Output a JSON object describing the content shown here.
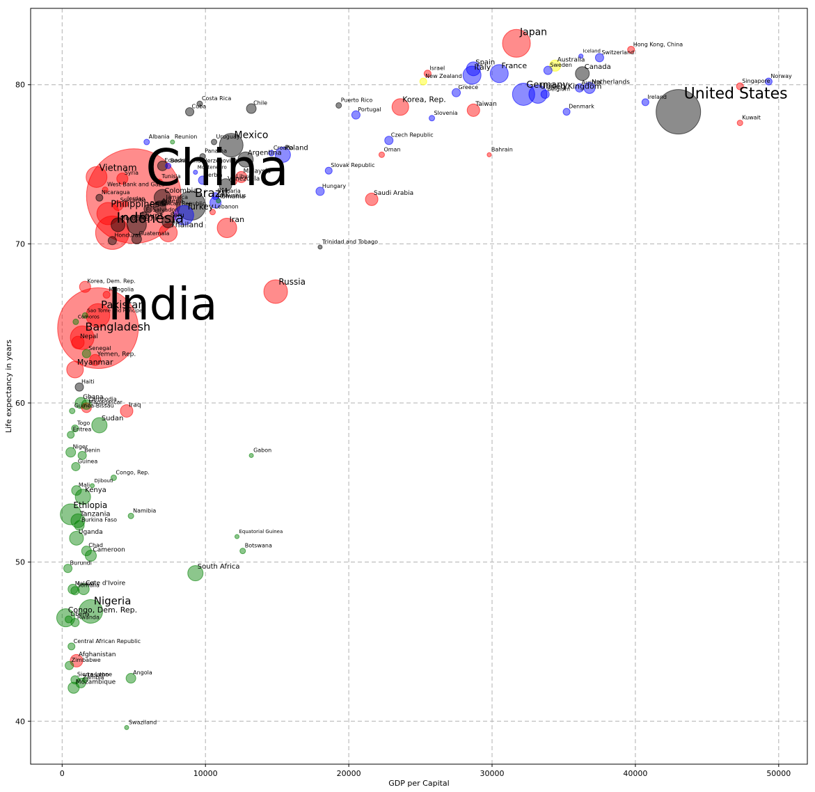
{
  "chart_data": {
    "type": "scatter",
    "title": "",
    "xlabel": "GDP per Capital",
    "ylabel": "Life expectancy in years",
    "xlim": [
      -2200,
      52000
    ],
    "ylim": [
      37.3,
      84.8
    ],
    "xticks": [
      0,
      10000,
      20000,
      30000,
      40000,
      50000
    ],
    "yticks": [
      40,
      50,
      60,
      70,
      80
    ],
    "grid": true,
    "grid_style": "dashed",
    "colors": {
      "red": "#ff0000",
      "blue": "#0000ff",
      "gray": "#000000",
      "green": "#008000",
      "yellow": "#ffff00"
    },
    "point_alpha": 0.45,
    "size_note": "bubble radius scales with label size (population)",
    "points": [
      {
        "name": "China",
        "x": 5000,
        "y": 73.0,
        "c": "red",
        "r": 68,
        "fs": 72
      },
      {
        "name": "India",
        "x": 2500,
        "y": 64.7,
        "c": "red",
        "r": 58,
        "fs": 64
      },
      {
        "name": "United States",
        "x": 43000,
        "y": 78.3,
        "c": "gray",
        "r": 32,
        "fs": 22
      },
      {
        "name": "Indonesia",
        "x": 3500,
        "y": 70.7,
        "c": "red",
        "r": 24,
        "fs": 20
      },
      {
        "name": "Brazil",
        "x": 9000,
        "y": 72.4,
        "c": "gray",
        "r": 21,
        "fs": 17
      },
      {
        "name": "Japan",
        "x": 31700,
        "y": 82.6,
        "c": "red",
        "r": 20,
        "fs": 14
      },
      {
        "name": "Bangladesh",
        "x": 1400,
        "y": 64.1,
        "c": "red",
        "r": 17,
        "fs": 16
      },
      {
        "name": "Pakistan",
        "x": 2500,
        "y": 65.5,
        "c": "red",
        "r": 17,
        "fs": 15
      },
      {
        "name": "Nigeria",
        "x": 2000,
        "y": 46.9,
        "c": "green",
        "r": 17,
        "fs": 15
      },
      {
        "name": "Mexico",
        "x": 11800,
        "y": 76.2,
        "c": "gray",
        "r": 17,
        "fs": 14
      },
      {
        "name": "Vietnam",
        "x": 2400,
        "y": 74.2,
        "c": "red",
        "r": 15,
        "fs": 13
      },
      {
        "name": "Philippines",
        "x": 3200,
        "y": 71.9,
        "c": "red",
        "r": 16,
        "fs": 13
      },
      {
        "name": "Germany",
        "x": 32200,
        "y": 79.4,
        "c": "blue",
        "r": 16,
        "fs": 13
      },
      {
        "name": "Russia",
        "x": 14900,
        "y": 67.0,
        "c": "red",
        "r": 17,
        "fs": 12
      },
      {
        "name": "Ethiopia",
        "x": 600,
        "y": 53.0,
        "c": "green",
        "r": 15,
        "fs": 12
      },
      {
        "name": "Egypt",
        "x": 5200,
        "y": 71.2,
        "c": "gray",
        "r": 14,
        "fs": 12
      },
      {
        "name": "Turkey",
        "x": 8500,
        "y": 71.8,
        "c": "blue",
        "r": 14,
        "fs": 12
      },
      {
        "name": "Iran",
        "x": 11500,
        "y": 71.0,
        "c": "red",
        "r": 14,
        "fs": 11
      },
      {
        "name": "Thailand",
        "x": 7400,
        "y": 70.7,
        "c": "red",
        "r": 13,
        "fs": 11
      },
      {
        "name": "France",
        "x": 30500,
        "y": 80.7,
        "c": "blue",
        "r": 13,
        "fs": 11
      },
      {
        "name": "United Kingdom",
        "x": 33200,
        "y": 79.4,
        "c": "blue",
        "r": 13,
        "fs": 11
      },
      {
        "name": "Italy",
        "x": 28600,
        "y": 80.6,
        "c": "blue",
        "r": 13,
        "fs": 11
      },
      {
        "name": "Congo, Dem. Rep.",
        "x": 250,
        "y": 46.5,
        "c": "green",
        "r": 13,
        "fs": 11
      },
      {
        "name": "Myanmar",
        "x": 900,
        "y": 62.1,
        "c": "red",
        "r": 12,
        "fs": 11
      },
      {
        "name": "Korea, Rep.",
        "x": 23600,
        "y": 78.6,
        "c": "red",
        "r": 12,
        "fs": 11
      },
      {
        "name": "Colombia",
        "x": 7000,
        "y": 72.9,
        "c": "gray",
        "r": 12,
        "fs": 10
      },
      {
        "name": "Spain",
        "x": 28700,
        "y": 81.0,
        "c": "blue",
        "r": 10,
        "fs": 10
      },
      {
        "name": "Argentina",
        "x": 12800,
        "y": 75.3,
        "c": "gray",
        "r": 11,
        "fs": 10
      },
      {
        "name": "Poland",
        "x": 15400,
        "y": 75.6,
        "c": "blue",
        "r": 11,
        "fs": 10
      },
      {
        "name": "Sudan",
        "x": 2600,
        "y": 58.6,
        "c": "green",
        "r": 11,
        "fs": 10
      },
      {
        "name": "Tanzania",
        "x": 1100,
        "y": 52.6,
        "c": "green",
        "r": 10,
        "fs": 10
      },
      {
        "name": "Kenya",
        "x": 1450,
        "y": 54.1,
        "c": "green",
        "r": 11,
        "fs": 10
      },
      {
        "name": "South Africa",
        "x": 9300,
        "y": 49.3,
        "c": "green",
        "r": 11,
        "fs": 10
      },
      {
        "name": "Canada",
        "x": 36300,
        "y": 80.7,
        "c": "gray",
        "r": 10,
        "fs": 10
      },
      {
        "name": "Morocco",
        "x": 3900,
        "y": 71.2,
        "c": "gray",
        "r": 10,
        "fs": 9
      },
      {
        "name": "Algeria",
        "x": 6800,
        "y": 72.3,
        "c": "gray",
        "r": 9,
        "fs": 9
      },
      {
        "name": "Iraq",
        "x": 4500,
        "y": 59.5,
        "c": "red",
        "r": 9,
        "fs": 9
      },
      {
        "name": "Saudi Arabia",
        "x": 21600,
        "y": 72.8,
        "c": "red",
        "r": 9,
        "fs": 9
      },
      {
        "name": "Malaysia",
        "x": 12500,
        "y": 74.2,
        "c": "red",
        "r": 8,
        "fs": 9
      },
      {
        "name": "Venezuela",
        "x": 11400,
        "y": 73.7,
        "c": "gray",
        "r": 9,
        "fs": 9
      },
      {
        "name": "Peru",
        "x": 7400,
        "y": 71.4,
        "c": "gray",
        "r": 9,
        "fs": 9
      },
      {
        "name": "Uganda",
        "x": 1000,
        "y": 51.5,
        "c": "green",
        "r": 10,
        "fs": 9
      },
      {
        "name": "Nepal",
        "x": 1100,
        "y": 63.8,
        "c": "red",
        "r": 9,
        "fs": 9
      },
      {
        "name": "Taiwan",
        "x": 28700,
        "y": 78.4,
        "c": "red",
        "r": 9,
        "fs": 9
      },
      {
        "name": "Australia",
        "x": 34400,
        "y": 81.2,
        "c": "yellow",
        "r": 8,
        "fs": 9
      },
      {
        "name": "Netherlands",
        "x": 36800,
        "y": 79.8,
        "c": "blue",
        "r": 8,
        "fs": 9
      },
      {
        "name": "Romania",
        "x": 10700,
        "y": 72.6,
        "c": "blue",
        "r": 8,
        "fs": 9
      },
      {
        "name": "Ghana",
        "x": 1300,
        "y": 60.0,
        "c": "green",
        "r": 8,
        "fs": 9
      },
      {
        "name": "Yemen, Rep.",
        "x": 2300,
        "y": 62.7,
        "c": "red",
        "r": 8,
        "fs": 9
      },
      {
        "name": "Mozambique",
        "x": 800,
        "y": 42.1,
        "c": "green",
        "r": 8,
        "fs": 9
      },
      {
        "name": "Cameroon",
        "x": 2000,
        "y": 50.4,
        "c": "green",
        "r": 8,
        "fs": 9
      },
      {
        "name": "Cote d'Ivoire",
        "x": 1500,
        "y": 48.3,
        "c": "green",
        "r": 8,
        "fs": 9
      },
      {
        "name": "Afghanistan",
        "x": 1000,
        "y": 43.8,
        "c": "red",
        "r": 9,
        "fs": 9
      },
      {
        "name": "Chile",
        "x": 13200,
        "y": 78.5,
        "c": "gray",
        "r": 7,
        "fs": 8
      },
      {
        "name": "Madagascar",
        "x": 1700,
        "y": 59.7,
        "c": "red",
        "r": 7,
        "fs": 8
      },
      {
        "name": "Cambodia",
        "x": 1700,
        "y": 59.9,
        "c": "green",
        "r": 7,
        "fs": 8
      },
      {
        "name": "Korea, Dem. Rep.",
        "x": 1600,
        "y": 67.3,
        "c": "red",
        "r": 8,
        "fs": 8
      },
      {
        "name": "Syria",
        "x": 4200,
        "y": 74.1,
        "c": "red",
        "r": 8,
        "fs": 8
      },
      {
        "name": "Sri Lanka",
        "x": 3900,
        "y": 72.4,
        "c": "red",
        "r": 7,
        "fs": 8
      },
      {
        "name": "Angola",
        "x": 4800,
        "y": 42.7,
        "c": "green",
        "r": 7,
        "fs": 8
      },
      {
        "name": "Zimbabwe",
        "x": 500,
        "y": 43.5,
        "c": "green",
        "r": 6,
        "fs": 8
      },
      {
        "name": "Burkina Faso",
        "x": 1200,
        "y": 52.3,
        "c": "green",
        "r": 7,
        "fs": 8
      },
      {
        "name": "Chad",
        "x": 1700,
        "y": 50.7,
        "c": "green",
        "r": 7,
        "fs": 8
      },
      {
        "name": "Mali",
        "x": 1000,
        "y": 54.5,
        "c": "green",
        "r": 7,
        "fs": 8
      },
      {
        "name": "Malawi",
        "x": 750,
        "y": 48.3,
        "c": "green",
        "r": 7,
        "fs": 8
      },
      {
        "name": "Niger",
        "x": 600,
        "y": 56.9,
        "c": "green",
        "r": 7,
        "fs": 8
      },
      {
        "name": "Zambia",
        "x": 1300,
        "y": 42.4,
        "c": "green",
        "r": 7,
        "fs": 8
      },
      {
        "name": "Senegal",
        "x": 1700,
        "y": 63.1,
        "c": "green",
        "r": 6,
        "fs": 8
      },
      {
        "name": "Guatemala",
        "x": 5200,
        "y": 70.3,
        "c": "gray",
        "r": 7,
        "fs": 8
      },
      {
        "name": "Cuba",
        "x": 8900,
        "y": 78.3,
        "c": "gray",
        "r": 6,
        "fs": 8
      },
      {
        "name": "Ecuador",
        "x": 7000,
        "y": 74.9,
        "c": "gray",
        "r": 7,
        "fs": 8
      },
      {
        "name": "Haiti",
        "x": 1200,
        "y": 61.0,
        "c": "gray",
        "r": 6,
        "fs": 8
      },
      {
        "name": "Greece",
        "x": 27500,
        "y": 79.5,
        "c": "blue",
        "r": 6,
        "fs": 8
      },
      {
        "name": "Belgium",
        "x": 33700,
        "y": 79.4,
        "c": "blue",
        "r": 6,
        "fs": 8
      },
      {
        "name": "Sweden",
        "x": 33900,
        "y": 80.9,
        "c": "blue",
        "r": 6,
        "fs": 8
      },
      {
        "name": "Austria",
        "x": 36100,
        "y": 79.8,
        "c": "blue",
        "r": 6,
        "fs": 8
      },
      {
        "name": "Switzerland",
        "x": 37500,
        "y": 81.7,
        "c": "blue",
        "r": 6,
        "fs": 8
      },
      {
        "name": "Hungary",
        "x": 18000,
        "y": 73.3,
        "c": "blue",
        "r": 6,
        "fs": 8
      },
      {
        "name": "Portugal",
        "x": 20500,
        "y": 78.1,
        "c": "blue",
        "r": 6,
        "fs": 8
      },
      {
        "name": "Czech Republic",
        "x": 22800,
        "y": 76.5,
        "c": "blue",
        "r": 6,
        "fs": 8
      },
      {
        "name": "Serbia",
        "x": 9800,
        "y": 74.0,
        "c": "blue",
        "r": 6,
        "fs": 8
      },
      {
        "name": "Bulgaria",
        "x": 10700,
        "y": 73.0,
        "c": "blue",
        "r": 5,
        "fs": 8
      },
      {
        "name": "Dominican Republic",
        "x": 6000,
        "y": 72.2,
        "c": "gray",
        "r": 6,
        "fs": 8
      },
      {
        "name": "El Salvador",
        "x": 5700,
        "y": 71.8,
        "c": "gray",
        "r": 5,
        "fs": 8
      },
      {
        "name": "Honduras",
        "x": 3500,
        "y": 70.2,
        "c": "gray",
        "r": 6,
        "fs": 8
      },
      {
        "name": "Nicaragua",
        "x": 2600,
        "y": 72.9,
        "c": "gray",
        "r": 5,
        "fs": 8
      },
      {
        "name": "Somalia",
        "x": 900,
        "y": 48.2,
        "c": "green",
        "r": 6,
        "fs": 8
      },
      {
        "name": "Rwanda",
        "x": 900,
        "y": 46.2,
        "c": "green",
        "r": 6,
        "fs": 8
      },
      {
        "name": "Burundi",
        "x": 400,
        "y": 49.6,
        "c": "green",
        "r": 6,
        "fs": 8
      },
      {
        "name": "Guinea",
        "x": 950,
        "y": 56.0,
        "c": "green",
        "r": 6,
        "fs": 8
      },
      {
        "name": "Benin",
        "x": 1400,
        "y": 56.7,
        "c": "green",
        "r": 6,
        "fs": 8
      },
      {
        "name": "Togo",
        "x": 900,
        "y": 58.4,
        "c": "green",
        "r": 5,
        "fs": 8
      },
      {
        "name": "Eritrea",
        "x": 600,
        "y": 58.0,
        "c": "green",
        "r": 5,
        "fs": 8
      },
      {
        "name": "Sierra Leone",
        "x": 900,
        "y": 42.6,
        "c": "green",
        "r": 6,
        "fs": 8
      },
      {
        "name": "Liberia",
        "x": 450,
        "y": 46.4,
        "c": "green",
        "r": 5,
        "fs": 8
      },
      {
        "name": "Central African Republic",
        "x": 650,
        "y": 44.7,
        "c": "green",
        "r": 5,
        "fs": 8
      },
      {
        "name": "Lesotho",
        "x": 1600,
        "y": 42.6,
        "c": "green",
        "r": 4,
        "fs": 8
      },
      {
        "name": "Guinea-Bissau",
        "x": 700,
        "y": 59.5,
        "c": "green",
        "r": 4,
        "fs": 8
      },
      {
        "name": "Mongolia",
        "x": 3100,
        "y": 66.8,
        "c": "red",
        "r": 5,
        "fs": 8
      },
      {
        "name": "Sao Tome and Principe",
        "x": 1600,
        "y": 65.5,
        "c": "green",
        "r": 4,
        "fs": 7
      },
      {
        "name": "Comoros",
        "x": 950,
        "y": 65.1,
        "c": "green",
        "r": 4,
        "fs": 7
      },
      {
        "name": "Iceland",
        "x": 36200,
        "y": 81.8,
        "c": "blue",
        "r": 3,
        "fs": 7
      },
      {
        "name": "Hong Kong, China",
        "x": 39700,
        "y": 82.2,
        "c": "red",
        "r": 5,
        "fs": 8
      },
      {
        "name": "Israel",
        "x": 25500,
        "y": 80.7,
        "c": "red",
        "r": 5,
        "fs": 8
      },
      {
        "name": "New Zealand",
        "x": 25200,
        "y": 80.2,
        "c": "yellow",
        "r": 5,
        "fs": 8
      },
      {
        "name": "Singapore",
        "x": 47300,
        "y": 79.9,
        "c": "red",
        "r": 5,
        "fs": 8
      },
      {
        "name": "Norway",
        "x": 49300,
        "y": 80.2,
        "c": "blue",
        "r": 5,
        "fs": 8
      },
      {
        "name": "Ireland",
        "x": 40700,
        "y": 78.9,
        "c": "blue",
        "r": 5,
        "fs": 8
      },
      {
        "name": "Denmark",
        "x": 35200,
        "y": 78.3,
        "c": "blue",
        "r": 5,
        "fs": 8
      },
      {
        "name": "Kuwait",
        "x": 47300,
        "y": 77.6,
        "c": "red",
        "r": 4,
        "fs": 8
      },
      {
        "name": "Bahrain",
        "x": 29800,
        "y": 75.6,
        "c": "red",
        "r": 3,
        "fs": 8
      },
      {
        "name": "Oman",
        "x": 22300,
        "y": 75.6,
        "c": "red",
        "r": 4,
        "fs": 8
      },
      {
        "name": "Slovenia",
        "x": 25800,
        "y": 77.9,
        "c": "blue",
        "r": 4,
        "fs": 8
      },
      {
        "name": "Puerto Rico",
        "x": 19300,
        "y": 78.7,
        "c": "gray",
        "r": 4,
        "fs": 8
      },
      {
        "name": "Croatia",
        "x": 14600,
        "y": 75.7,
        "c": "blue",
        "r": 4,
        "fs": 8
      },
      {
        "name": "Slovak Republic",
        "x": 18600,
        "y": 74.6,
        "c": "blue",
        "r": 5,
        "fs": 8
      },
      {
        "name": "Costa Rica",
        "x": 9600,
        "y": 78.8,
        "c": "gray",
        "r": 4,
        "fs": 8
      },
      {
        "name": "Uruguay",
        "x": 10600,
        "y": 76.4,
        "c": "gray",
        "r": 4,
        "fs": 8
      },
      {
        "name": "Panama",
        "x": 9800,
        "y": 75.5,
        "c": "gray",
        "r": 4,
        "fs": 8
      },
      {
        "name": "Albania",
        "x": 5900,
        "y": 76.4,
        "c": "blue",
        "r": 4,
        "fs": 8
      },
      {
        "name": "Reunion",
        "x": 7700,
        "y": 76.4,
        "c": "green",
        "r": 3,
        "fs": 8
      },
      {
        "name": "Bosnia and Herzegovina",
        "x": 7400,
        "y": 74.9,
        "c": "blue",
        "r": 4,
        "fs": 8
      },
      {
        "name": "Montenegro",
        "x": 9300,
        "y": 74.5,
        "c": "blue",
        "r": 3,
        "fs": 7
      },
      {
        "name": "Mauritius",
        "x": 10900,
        "y": 72.7,
        "c": "green",
        "r": 3,
        "fs": 8
      },
      {
        "name": "Libya",
        "x": 12000,
        "y": 73.9,
        "c": "red",
        "r": 4,
        "fs": 8
      },
      {
        "name": "Tunisia",
        "x": 6800,
        "y": 73.9,
        "c": "red",
        "r": 4,
        "fs": 8
      },
      {
        "name": "Jordan",
        "x": 4400,
        "y": 72.5,
        "c": "red",
        "r": 4,
        "fs": 8
      },
      {
        "name": "West Bank and Gaza",
        "x": 3000,
        "y": 73.4,
        "c": "red",
        "r": 4,
        "fs": 8
      },
      {
        "name": "Jamaica",
        "x": 7100,
        "y": 72.6,
        "c": "gray",
        "r": 4,
        "fs": 8
      },
      {
        "name": "Lebanon",
        "x": 10500,
        "y": 72.0,
        "c": "red",
        "r": 4,
        "fs": 8
      },
      {
        "name": "Trinidad and Tobago",
        "x": 18000,
        "y": 69.8,
        "c": "gray",
        "r": 3,
        "fs": 8
      },
      {
        "name": "Gabon",
        "x": 13200,
        "y": 56.7,
        "c": "green",
        "r": 3,
        "fs": 8
      },
      {
        "name": "Congo, Rep.",
        "x": 3600,
        "y": 55.3,
        "c": "green",
        "r": 4,
        "fs": 8
      },
      {
        "name": "Djibouti",
        "x": 2100,
        "y": 54.8,
        "c": "green",
        "r": 3,
        "fs": 7
      },
      {
        "name": "Namibia",
        "x": 4800,
        "y": 52.9,
        "c": "green",
        "r": 4,
        "fs": 8
      },
      {
        "name": "Equatorial Guinea",
        "x": 12200,
        "y": 51.6,
        "c": "green",
        "r": 3,
        "fs": 7
      },
      {
        "name": "Botswana",
        "x": 12600,
        "y": 50.7,
        "c": "green",
        "r": 4,
        "fs": 8
      },
      {
        "name": "Swaziland",
        "x": 4500,
        "y": 39.6,
        "c": "green",
        "r": 3,
        "fs": 8
      }
    ]
  }
}
